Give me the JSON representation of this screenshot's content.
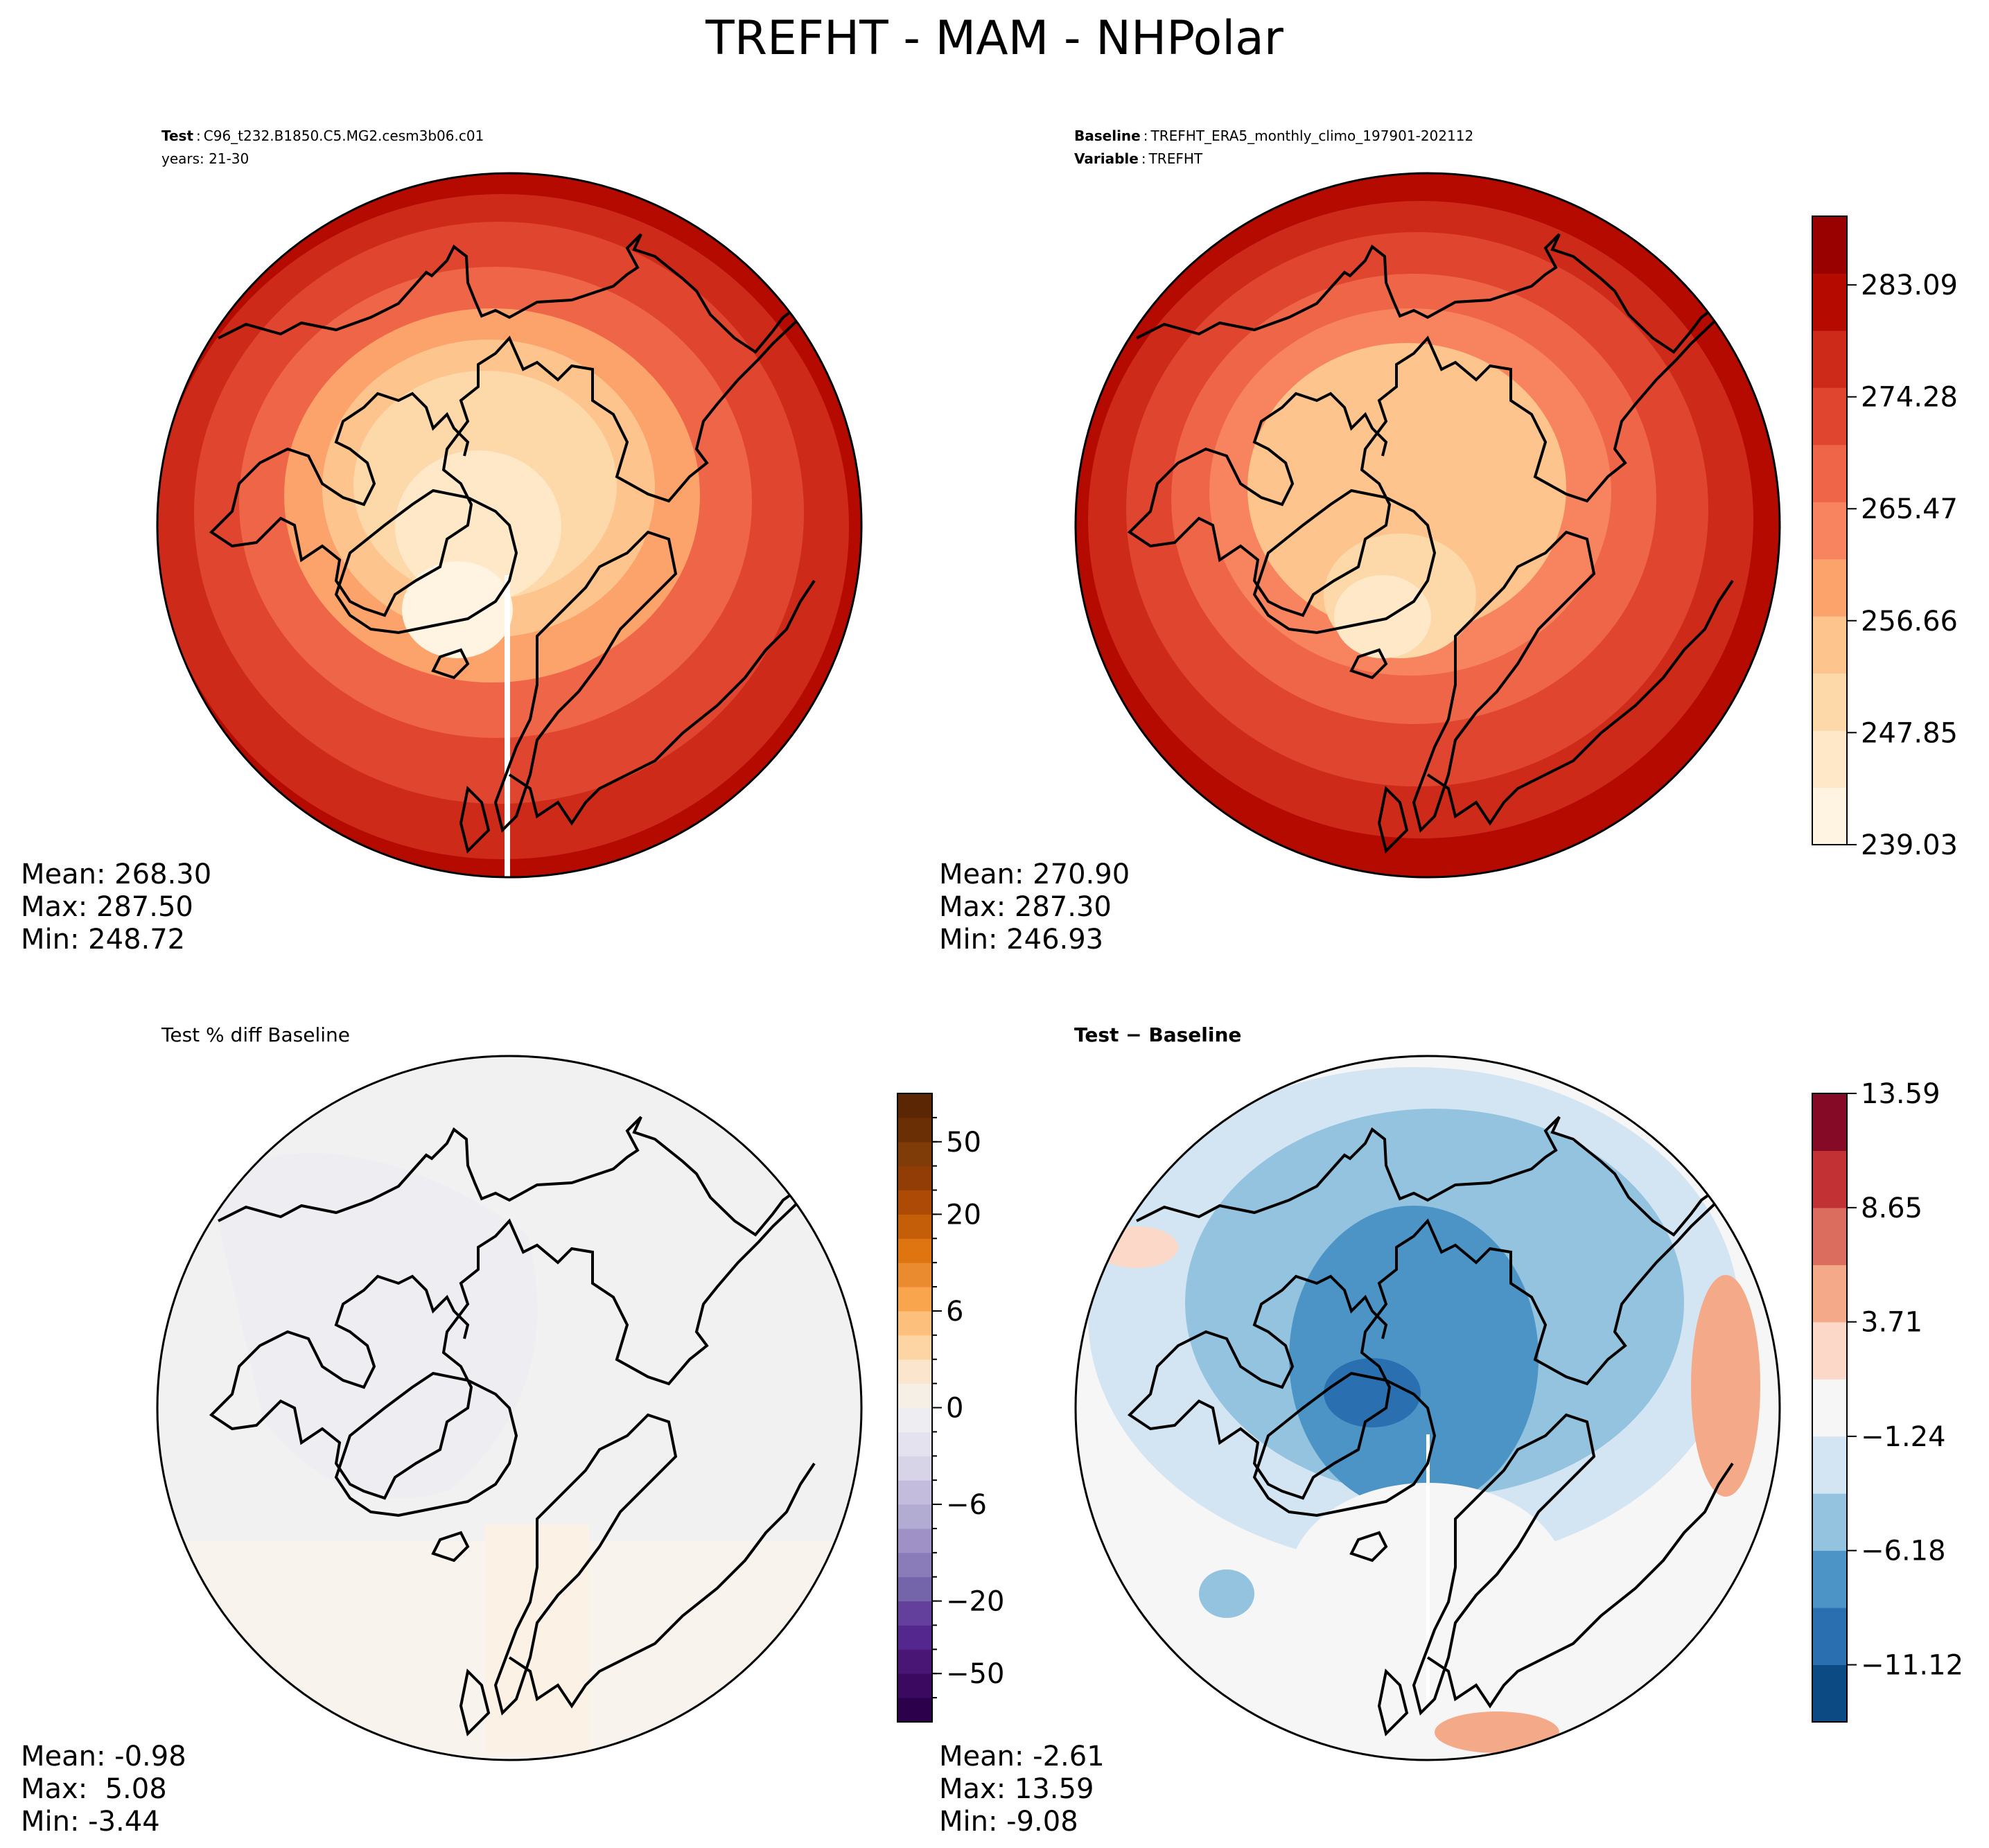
{
  "figure": {
    "title": "TREFHT - MAM - NHPolar"
  },
  "panels": {
    "test": {
      "header_key": "Test",
      "header_value": "C96_t232.B1850.C5.MG2.cesm3b06.c01",
      "header_line2": "years: 21-30",
      "stats": [
        "Mean: 268.30",
        "Max: 287.50",
        "Min: 248.72"
      ]
    },
    "baseline": {
      "header_key": "Baseline",
      "header_value": "TREFHT_ERA5_monthly_climo_197901-202112",
      "header_key2": "Variable",
      "header_value2": "TREFHT",
      "stats": [
        "Mean: 270.90",
        "Max: 287.30",
        "Min: 246.93"
      ]
    },
    "pct_diff": {
      "title": "Test % diff Baseline",
      "stats": [
        "Mean: -0.98",
        "Max:  5.08",
        "Min: -3.44"
      ]
    },
    "diff": {
      "title": "Test − Baseline",
      "stats": [
        "Mean: -2.61",
        "Max: 13.59",
        "Min: -9.08"
      ]
    }
  },
  "chart_data": [
    {
      "type": "heatmap",
      "projection": "north-polar-stereographic",
      "panel": "test",
      "colormap": "OrRd",
      "colors": [
        "#fff3e2",
        "#fee8c8",
        "#fdd9a9",
        "#fdc48d",
        "#fca26b",
        "#f7845e",
        "#ef6548",
        "#e04530",
        "#cd2a1a",
        "#b40a00",
        "#990000"
      ],
      "color_min": 239.03,
      "color_max": 287.5,
      "stats": {
        "mean": 268.3,
        "max": 287.5,
        "min": 248.72
      }
    },
    {
      "type": "heatmap",
      "projection": "north-polar-stereographic",
      "panel": "baseline",
      "colormap": "OrRd",
      "colors": [
        "#fff3e2",
        "#fee8c8",
        "#fdd9a9",
        "#fdc48d",
        "#fca26b",
        "#f7845e",
        "#ef6548",
        "#e04530",
        "#cd2a1a",
        "#b40a00",
        "#990000"
      ],
      "colorbar_ticks": [
        "239.03",
        "247.85",
        "256.66",
        "265.47",
        "274.28",
        "283.09"
      ],
      "colorbar_tick_values": [
        239.03,
        247.85,
        256.66,
        265.47,
        274.28,
        283.09
      ],
      "colorbar_range": [
        239.03,
        288.5
      ],
      "stats": {
        "mean": 270.9,
        "max": 287.3,
        "min": 246.93
      }
    },
    {
      "type": "heatmap",
      "projection": "north-polar-stereographic",
      "panel": "pct_diff",
      "colormap": "PuOr_r",
      "levels": [
        -100,
        -75,
        -50,
        -40,
        -30,
        -20,
        -15,
        -10,
        -8,
        -6,
        -4,
        -2,
        -1,
        0,
        1,
        2,
        4,
        6,
        8,
        10,
        15,
        20,
        30,
        40,
        50,
        75,
        100
      ],
      "colors": [
        "#2d004b",
        "#3b0a60",
        "#4a1675",
        "#54278f",
        "#62409b",
        "#7464aa",
        "#8a7cb8",
        "#9f91c5",
        "#b2abd2",
        "#c4bcdc",
        "#d8d4e8",
        "#e5e2ef",
        "#eeedf2",
        "#f6efe6",
        "#fbe5cc",
        "#fdd5a4",
        "#fdc07c",
        "#f9a54e",
        "#eb8b2f",
        "#de7511",
        "#c45e08",
        "#ad4b06",
        "#923c06",
        "#7f3b08",
        "#6a2f05",
        "#5a2604"
      ],
      "colorbar_ticks": [
        "−50",
        "−20",
        "−6",
        "0",
        "6",
        "20",
        "50"
      ],
      "colorbar_tick_positions": [
        2,
        5,
        9,
        13,
        17,
        21,
        24
      ],
      "stats": {
        "mean": -0.98,
        "max": 5.08,
        "min": -3.44
      }
    },
    {
      "type": "heatmap",
      "projection": "north-polar-stereographic",
      "panel": "diff",
      "colormap": "RdBu_r",
      "colors": [
        "#0b4a82",
        "#2a70b0",
        "#4d94c6",
        "#93c3df",
        "#d3e5f2",
        "#f6f6f6",
        "#fbd8c8",
        "#f4a989",
        "#db6d5e",
        "#c23134",
        "#850a26"
      ],
      "colorbar_ticks": [
        "−11.12",
        "−6.18",
        "−1.24",
        "3.71",
        "8.65",
        "13.59"
      ],
      "colorbar_tick_values": [
        -11.12,
        -6.18,
        -1.24,
        3.71,
        8.65,
        13.59
      ],
      "colorbar_range": [
        -13.59,
        13.59
      ],
      "stats": {
        "mean": -2.61,
        "max": 13.59,
        "min": -9.08
      }
    }
  ]
}
